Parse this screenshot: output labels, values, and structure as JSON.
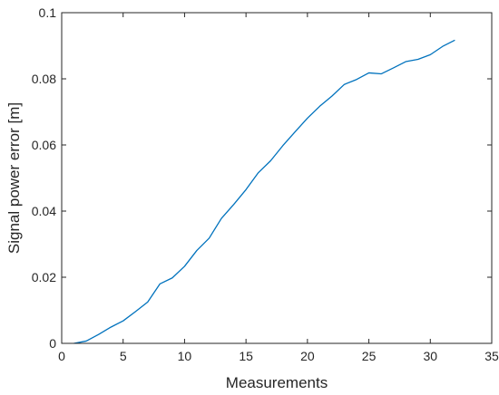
{
  "chart_data": {
    "type": "line",
    "title": "",
    "xlabel": "Measurements",
    "ylabel": "Signal power error [m]",
    "xlim": [
      0,
      35
    ],
    "ylim": [
      0,
      0.1
    ],
    "xticks": [
      0,
      5,
      10,
      15,
      20,
      25,
      30,
      35
    ],
    "xtick_labels": [
      "0",
      "5",
      "10",
      "15",
      "20",
      "25",
      "30",
      "35"
    ],
    "yticks": [
      0,
      0.02,
      0.04,
      0.06,
      0.08,
      0.1
    ],
    "ytick_labels": [
      "0",
      "0.02",
      "0.04",
      "0.06",
      "0.08",
      "0.1"
    ],
    "grid": false,
    "legend": "none",
    "series_color": "#0072BD",
    "axis_color": "#262626",
    "x": [
      1,
      2,
      3,
      4,
      5,
      6,
      7,
      8,
      9,
      10,
      11,
      12,
      13,
      14,
      15,
      16,
      17,
      18,
      19,
      20,
      21,
      22,
      23,
      24,
      25,
      26,
      27,
      28,
      29,
      30,
      31,
      32
    ],
    "series": [
      {
        "values": [
          0.0,
          0.0007,
          0.0027,
          0.0049,
          0.0068,
          0.0096,
          0.0125,
          0.018,
          0.0198,
          0.0233,
          0.0281,
          0.0318,
          0.0378,
          0.042,
          0.0465,
          0.0516,
          0.0552,
          0.0598,
          0.064,
          0.0681,
          0.0717,
          0.0748,
          0.0783,
          0.0798,
          0.0818,
          0.0815,
          0.0833,
          0.0852,
          0.0859,
          0.0873,
          0.0898,
          0.0917
        ]
      }
    ]
  }
}
